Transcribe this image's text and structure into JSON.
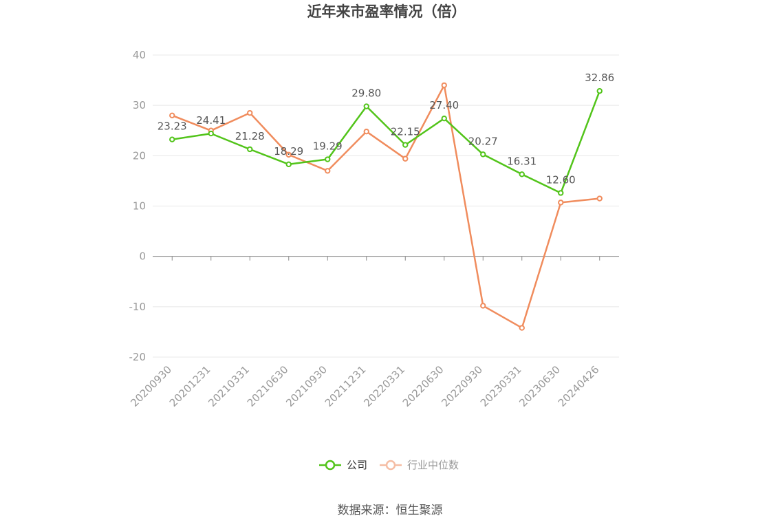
{
  "chart_data": {
    "type": "line",
    "title": "近年来市盈率情况（倍）",
    "categories": [
      "20200930",
      "20201231",
      "20210331",
      "20210630",
      "20210930",
      "20211231",
      "20220331",
      "20220630",
      "20220930",
      "20230331",
      "20230630",
      "20240426"
    ],
    "series": [
      {
        "name": "公司",
        "color": "#52c41a",
        "values": [
          23.23,
          24.41,
          21.28,
          18.29,
          19.29,
          29.8,
          22.15,
          27.4,
          20.27,
          16.31,
          12.6,
          32.86
        ],
        "labels": [
          "23.23",
          "24.41",
          "21.28",
          "18.29",
          "19.29",
          "29.80",
          "22.15",
          "27.40",
          "20.27",
          "16.31",
          "12.60",
          "32.86"
        ]
      },
      {
        "name": "行业中位数",
        "color": "#f08c5d",
        "values": [
          28.0,
          25.0,
          28.5,
          20.2,
          17.0,
          24.8,
          19.4,
          34.0,
          -9.8,
          -14.2,
          10.7,
          11.5
        ]
      }
    ],
    "ylim": [
      -20,
      40
    ],
    "yticks": [
      "40",
      "30",
      "20",
      "10",
      "0",
      "-10",
      "-20"
    ],
    "grid": true,
    "legend": "bottom-center",
    "legend_inactive_color": "#f5bda4"
  },
  "source": "数据来源：恒生聚源"
}
